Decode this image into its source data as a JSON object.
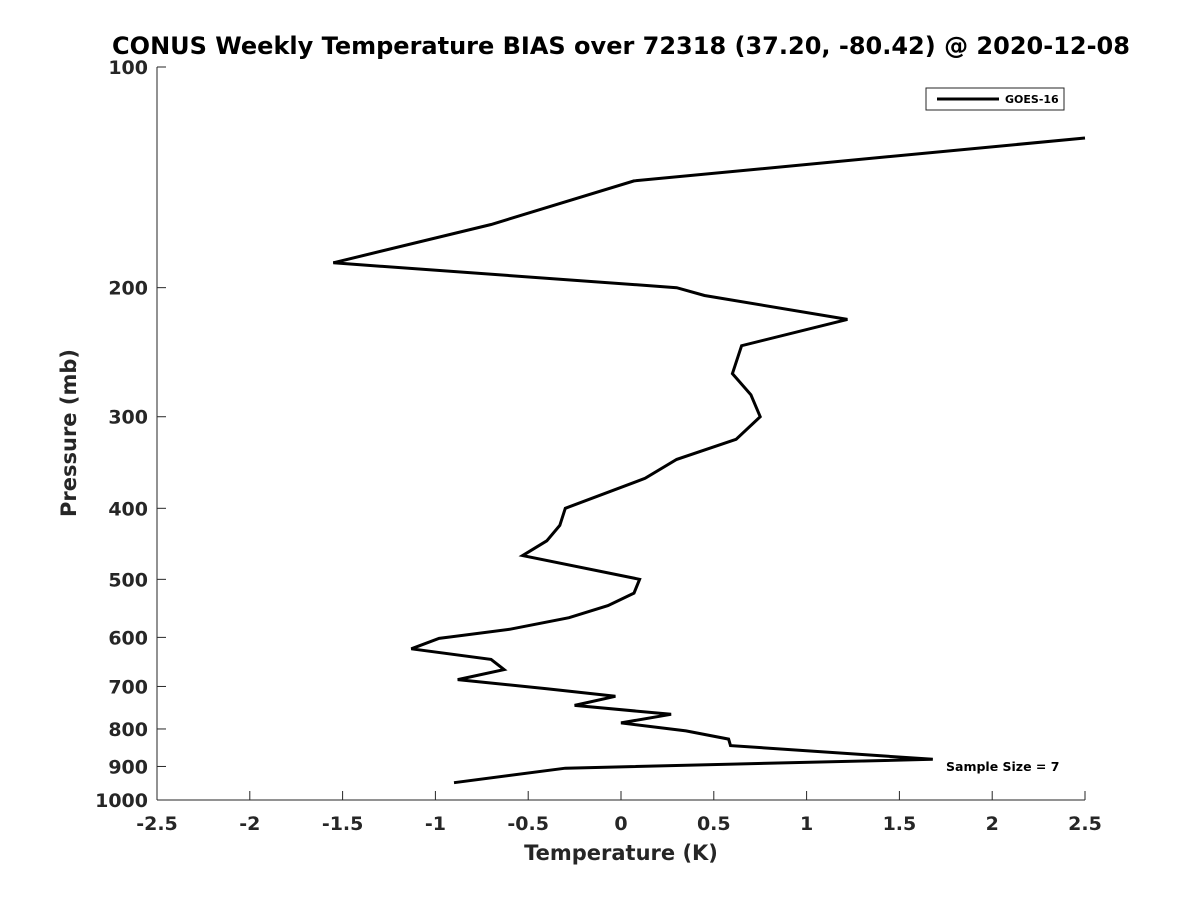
{
  "chart_data": {
    "type": "line",
    "title": "CONUS Weekly Temperature BIAS over 72318 (37.20, -80.42) @ 2020-12-08",
    "xlabel": "Temperature (K)",
    "ylabel": "Pressure (mb)",
    "xlim": [
      -2.5,
      2.5
    ],
    "ylim": [
      100,
      1000
    ],
    "y_scale": "log",
    "y_reversed": true,
    "x_ticks": [
      "-2.5",
      "-2",
      "-1.5",
      "-1",
      "-0.5",
      "0",
      "0.5",
      "1",
      "1.5",
      "2",
      "2.5"
    ],
    "y_ticks": [
      "100",
      "200",
      "300",
      "400",
      "500",
      "600",
      "700",
      "800",
      "900",
      "1000"
    ],
    "grid": false,
    "legend_position": "top-right",
    "series": [
      {
        "name": "GOES-16",
        "color": "#000000",
        "points": [
          {
            "x": 2.5,
            "p": 125
          },
          {
            "x": 0.07,
            "p": 143
          },
          {
            "x": -0.7,
            "p": 164
          },
          {
            "x": -1.55,
            "p": 185
          },
          {
            "x": 0.3,
            "p": 200
          },
          {
            "x": 0.45,
            "p": 205
          },
          {
            "x": 1.22,
            "p": 221
          },
          {
            "x": 0.65,
            "p": 240
          },
          {
            "x": 0.6,
            "p": 262
          },
          {
            "x": 0.7,
            "p": 280
          },
          {
            "x": 0.75,
            "p": 300
          },
          {
            "x": 0.62,
            "p": 322
          },
          {
            "x": 0.3,
            "p": 343
          },
          {
            "x": 0.13,
            "p": 364
          },
          {
            "x": -0.3,
            "p": 400
          },
          {
            "x": -0.33,
            "p": 422
          },
          {
            "x": -0.4,
            "p": 443
          },
          {
            "x": -0.53,
            "p": 464
          },
          {
            "x": 0.1,
            "p": 500
          },
          {
            "x": 0.07,
            "p": 522
          },
          {
            "x": -0.07,
            "p": 543
          },
          {
            "x": -0.28,
            "p": 564
          },
          {
            "x": -0.6,
            "p": 585
          },
          {
            "x": -0.98,
            "p": 602
          },
          {
            "x": -1.13,
            "p": 622
          },
          {
            "x": -0.7,
            "p": 643
          },
          {
            "x": -0.63,
            "p": 664
          },
          {
            "x": -0.88,
            "p": 685
          },
          {
            "x": -0.4,
            "p": 705
          },
          {
            "x": -0.03,
            "p": 722
          },
          {
            "x": -0.25,
            "p": 743
          },
          {
            "x": 0.27,
            "p": 764
          },
          {
            "x": 0.0,
            "p": 785
          },
          {
            "x": 0.35,
            "p": 805
          },
          {
            "x": 0.58,
            "p": 826
          },
          {
            "x": 0.59,
            "p": 843
          },
          {
            "x": 1.68,
            "p": 880
          },
          {
            "x": -0.3,
            "p": 905
          },
          {
            "x": -0.9,
            "p": 947
          }
        ]
      }
    ],
    "annotations": [
      {
        "text": "Sample Size = 7",
        "x": 1.75,
        "p": 900
      }
    ]
  }
}
